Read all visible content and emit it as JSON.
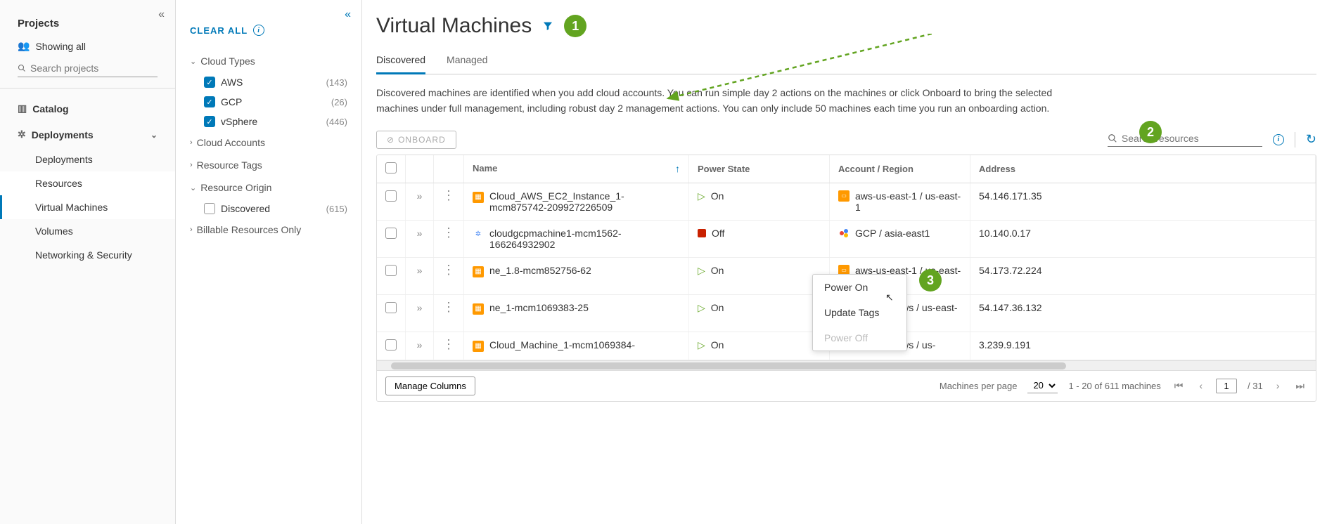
{
  "leftSidebar": {
    "projectsTitle": "Projects",
    "showingAll": "Showing all",
    "searchPlaceholder": "Search projects",
    "nav": {
      "catalog": "Catalog",
      "deployments": "Deployments",
      "subitems": {
        "deployments": "Deployments",
        "resources": "Resources",
        "virtualMachines": "Virtual Machines",
        "volumes": "Volumes",
        "networkingSecurity": "Networking & Security"
      }
    }
  },
  "filterPanel": {
    "clearAll": "CLEAR ALL",
    "groups": {
      "cloudTypes": {
        "label": "Cloud Types",
        "expanded": true,
        "options": [
          {
            "label": "AWS",
            "count": "(143)",
            "checked": true
          },
          {
            "label": "GCP",
            "count": "(26)",
            "checked": true
          },
          {
            "label": "vSphere",
            "count": "(446)",
            "checked": true
          }
        ]
      },
      "cloudAccounts": {
        "label": "Cloud Accounts",
        "expanded": false
      },
      "resourceTags": {
        "label": "Resource Tags",
        "expanded": false
      },
      "resourceOrigin": {
        "label": "Resource Origin",
        "expanded": true,
        "options": [
          {
            "label": "Discovered",
            "count": "(615)",
            "checked": false
          }
        ]
      },
      "billableOnly": {
        "label": "Billable Resources Only",
        "expanded": false
      }
    }
  },
  "main": {
    "title": "Virtual Machines",
    "tabs": {
      "discovered": "Discovered",
      "managed": "Managed"
    },
    "description": "Discovered machines are identified when you add cloud accounts. You can run simple day 2 actions on the machines or click Onboard to bring the selected machines under full management, including robust day 2 management actions. You can only include 50 machines each time you run an onboarding action.",
    "onboard": "ONBOARD",
    "searchPlaceholder": "Search resources",
    "columns": {
      "name": "Name",
      "powerState": "Power State",
      "accountRegion": "Account / Region",
      "address": "Address"
    },
    "rows": [
      {
        "icon": "aws",
        "name": "Cloud_AWS_EC2_Instance_1-mcm875742-209927226509",
        "power": "On",
        "powerIcon": "on",
        "acctIcon": "aws",
        "account": "aws-us-east-1 / us-east-1",
        "address": "54.146.171.35"
      },
      {
        "icon": "gcp",
        "name": "cloudgcpmachine1-mcm1562-166264932902",
        "power": "Off",
        "powerIcon": "off",
        "acctIcon": "gcp",
        "account": "GCP / asia-east1",
        "address": "10.140.0.17"
      },
      {
        "icon": "aws",
        "name": "ne_1.8-mcm852756-62",
        "power": "On",
        "powerIcon": "on",
        "acctIcon": "aws",
        "account": "aws-us-east-1 / us-east-1",
        "address": "54.173.72.224"
      },
      {
        "icon": "aws",
        "name": "ne_1-mcm1069383-25",
        "power": "On",
        "powerIcon": "on",
        "acctIcon": "aws",
        "account": "blueprint-aws / us-east-1",
        "address": "54.147.36.132"
      },
      {
        "icon": "aws",
        "name": "Cloud_Machine_1-mcm1069384-",
        "power": "On",
        "powerIcon": "on",
        "acctIcon": "aws",
        "account": "blueprint-aws / us-",
        "address": "3.239.9.191"
      }
    ],
    "contextMenu": {
      "powerOn": "Power On",
      "updateTags": "Update Tags",
      "powerOff": "Power Off"
    },
    "footer": {
      "manageColumns": "Manage Columns",
      "perPageLabel": "Machines per page",
      "perPageValue": "20",
      "rangeText": "1 - 20 of 611 machines",
      "currentPage": "1",
      "totalPages": "/ 31"
    },
    "callouts": {
      "c1": "1",
      "c2": "2",
      "c3": "3"
    }
  }
}
